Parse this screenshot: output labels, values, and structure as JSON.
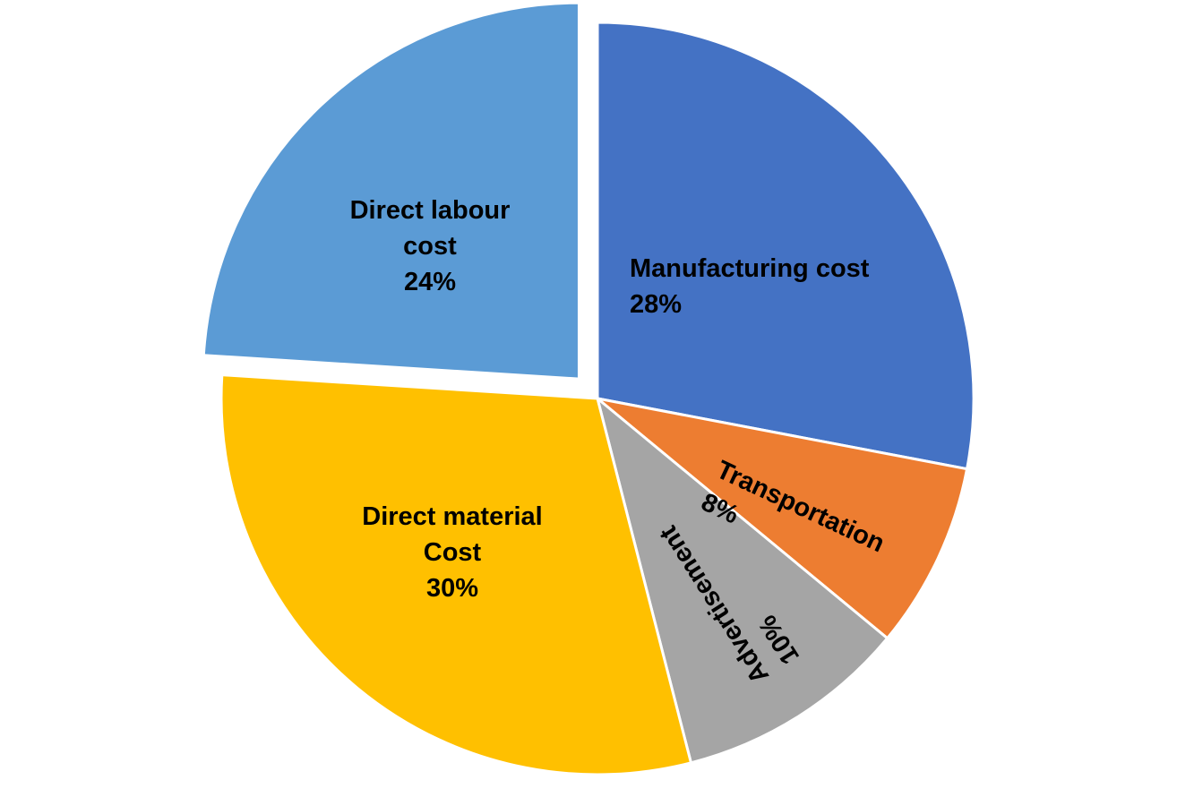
{
  "chart_data": {
    "type": "pie",
    "categories": [
      "Manufacturing cost",
      "Transportation",
      "Advertisement",
      "Direct material Cost",
      "Direct labour cost"
    ],
    "values": [
      28,
      8,
      10,
      30,
      24
    ],
    "value_labels": [
      "28%",
      "8%",
      "10%",
      "30%",
      "24%"
    ],
    "colors": [
      "#4472c4",
      "#ed7d31",
      "#a5a5a5",
      "#ffc000",
      "#5b9bd5"
    ],
    "exploded": [
      false,
      false,
      false,
      false,
      true
    ]
  }
}
